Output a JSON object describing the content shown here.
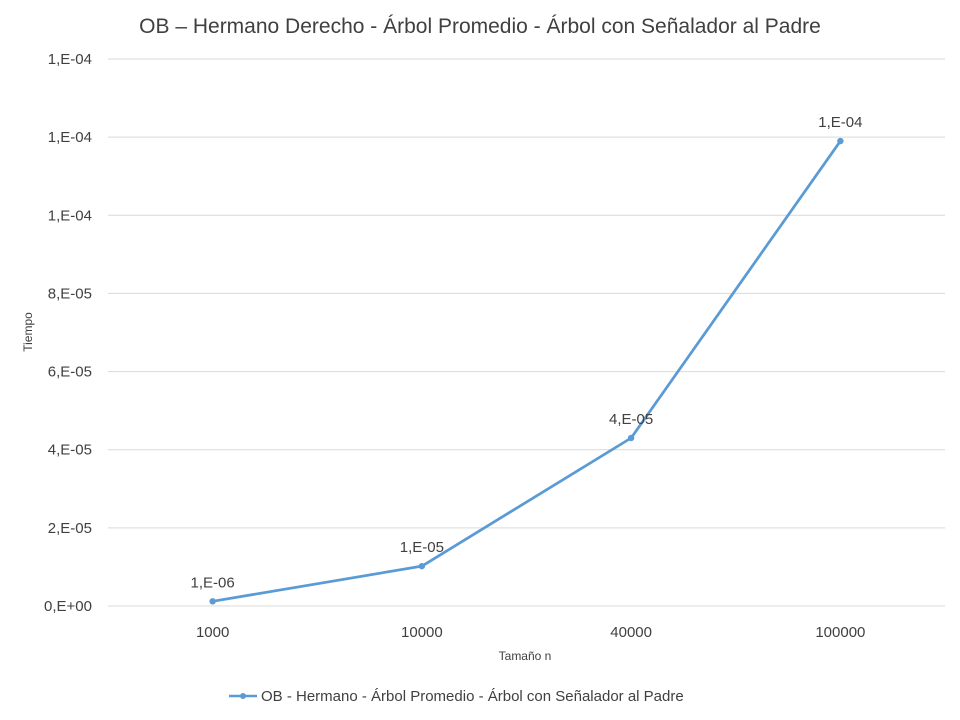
{
  "chart_data": {
    "type": "line",
    "title": "OB – Hermano Derecho - Árbol Promedio - Árbol con Señalador al Padre",
    "xlabel": "Tamaño n",
    "ylabel": "Tiempo",
    "categories": [
      "1000",
      "10000",
      "40000",
      "100000"
    ],
    "series": [
      {
        "name": "OB - Hermano - Árbol Promedio - Árbol con Señalador al Padre",
        "values": [
          1.2e-06,
          1.02e-05,
          4.3e-05,
          0.000119
        ],
        "data_labels": [
          "1,E-06",
          "1,E-05",
          "4,E-05",
          "1,E-04"
        ],
        "color": "#5B9BD5"
      }
    ],
    "ylim": [
      0,
      0.00014
    ],
    "yticks": [
      0,
      2e-05,
      4e-05,
      6e-05,
      8e-05,
      0.0001,
      0.00012,
      0.00014
    ],
    "ytick_labels": [
      "0,E+00",
      "2,E-05",
      "4,E-05",
      "6,E-05",
      "8,E-05",
      "1,E-04",
      "1,E-04",
      "1,E-04"
    ],
    "grid": true,
    "legend_position": "bottom",
    "gridline_color": "#D9D9D9"
  }
}
